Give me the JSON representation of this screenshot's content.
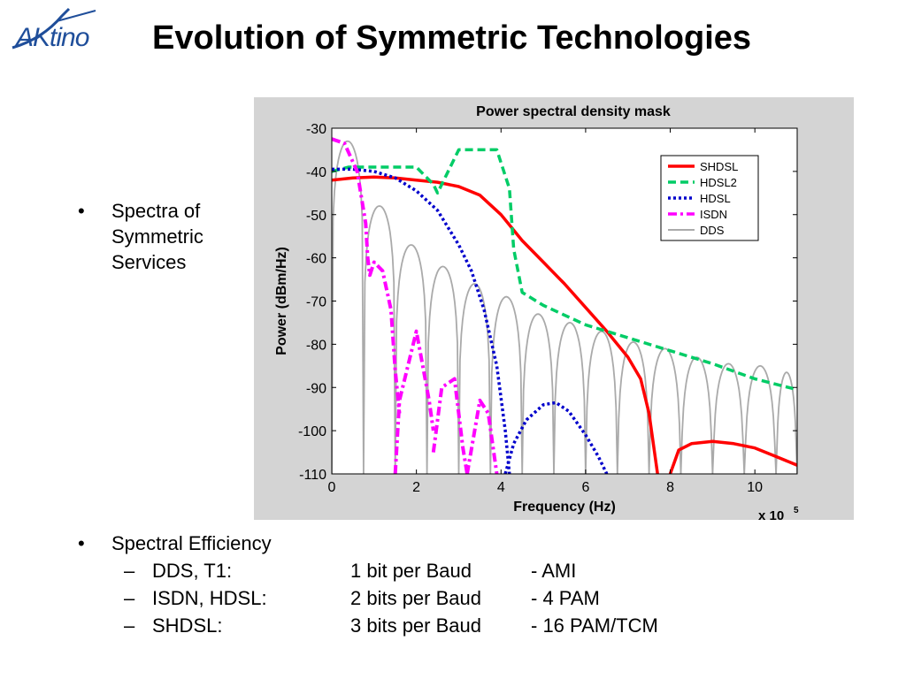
{
  "logo": {
    "text": "AKtino"
  },
  "title": "Evolution of Symmetric Technologies",
  "bullet1": {
    "marker": "•",
    "text": "Spectra of Symmetric Services"
  },
  "bullet2": {
    "marker": "•",
    "text": "Spectral Efficiency",
    "items": [
      {
        "dash": "–",
        "tech": "DDS, T1:",
        "rate": "1 bit per Baud",
        "coding": "- AMI"
      },
      {
        "dash": "–",
        "tech": "ISDN, HDSL:",
        "rate": "2 bits per Baud",
        "coding": "- 4 PAM"
      },
      {
        "dash": "–",
        "tech": "SHDSL:",
        "rate": "3 bits per Baud",
        "coding": "- 16 PAM/TCM"
      }
    ]
  },
  "colors": {
    "chart_background": "#d4d4d4",
    "shdsl": "#ff0000",
    "hdsl2": "#00cc66",
    "hdsl": "#0000cc",
    "isdn": "#ff00ff",
    "dds": "#aaaaaa",
    "logo": "#1f4e9a"
  },
  "chart_data": {
    "type": "line",
    "title": "Power spectral density mask",
    "xlabel": "Frequency (Hz)",
    "ylabel": "Power (dBm/Hz)",
    "x_multiplier_label": "x 10",
    "x_multiplier_exponent": "5",
    "xlim": [
      0,
      11
    ],
    "ylim": [
      -110,
      -30
    ],
    "xticks": [
      "0",
      "2",
      "4",
      "6",
      "8",
      "10"
    ],
    "xtick_values": [
      0,
      2,
      4,
      6,
      8,
      10
    ],
    "yticks": [
      "-30",
      "-40",
      "-50",
      "-60",
      "-70",
      "-80",
      "-90",
      "-100",
      "-110"
    ],
    "ytick_values": [
      -30,
      -40,
      -50,
      -60,
      -70,
      -80,
      -90,
      -100,
      -110
    ],
    "grid": false,
    "legend_position": "top-right",
    "series": [
      {
        "name": "SHDSL",
        "style": "solid",
        "color": "#ff0000",
        "segments": [
          [
            [
              0,
              -42
            ],
            [
              0.5,
              -41.5
            ],
            [
              1.0,
              -41.3
            ],
            [
              1.5,
              -41.5
            ],
            [
              2.0,
              -42
            ],
            [
              2.5,
              -42.5
            ],
            [
              3.0,
              -43.5
            ],
            [
              3.5,
              -45.5
            ],
            [
              4.0,
              -50
            ],
            [
              4.5,
              -56
            ],
            [
              5.0,
              -61
            ],
            [
              5.5,
              -66
            ],
            [
              6.0,
              -71.5
            ],
            [
              6.5,
              -77
            ],
            [
              7.0,
              -83
            ],
            [
              7.3,
              -88
            ],
            [
              7.5,
              -96
            ],
            [
              7.6,
              -103
            ],
            [
              7.7,
              -110
            ]
          ],
          [
            [
              8.0,
              -110
            ],
            [
              8.2,
              -104.5
            ],
            [
              8.5,
              -103
            ],
            [
              9.0,
              -102.5
            ],
            [
              9.5,
              -103
            ],
            [
              10.0,
              -104
            ],
            [
              10.5,
              -106
            ],
            [
              11.0,
              -108
            ]
          ]
        ]
      },
      {
        "name": "HDSL2",
        "style": "dashed",
        "color": "#00cc66",
        "segments": [
          [
            [
              0,
              -40
            ],
            [
              0.4,
              -39
            ],
            [
              1.0,
              -39
            ],
            [
              1.5,
              -39
            ],
            [
              2.0,
              -39
            ],
            [
              2.4,
              -43
            ],
            [
              2.5,
              -45
            ],
            [
              2.7,
              -41
            ],
            [
              3.0,
              -35
            ],
            [
              3.5,
              -35
            ],
            [
              3.9,
              -35
            ],
            [
              4.2,
              -44
            ],
            [
              4.3,
              -58
            ],
            [
              4.5,
              -68
            ],
            [
              5.0,
              -71
            ],
            [
              6.0,
              -75.5
            ],
            [
              7.0,
              -78.5
            ],
            [
              8.0,
              -81.5
            ],
            [
              9.0,
              -84.5
            ],
            [
              10.0,
              -88
            ],
            [
              11.0,
              -90.5
            ]
          ]
        ]
      },
      {
        "name": "HDSL",
        "style": "dotted",
        "color": "#0000cc",
        "segments": [
          [
            [
              0,
              -39.5
            ],
            [
              0.5,
              -39.5
            ],
            [
              1.0,
              -40
            ],
            [
              1.5,
              -41.5
            ],
            [
              2.0,
              -44.5
            ],
            [
              2.5,
              -49
            ],
            [
              3.0,
              -57
            ],
            [
              3.3,
              -63
            ],
            [
              3.6,
              -72
            ],
            [
              3.9,
              -85
            ],
            [
              4.1,
              -100
            ],
            [
              4.2,
              -110
            ]
          ],
          [
            [
              4.1,
              -110
            ],
            [
              4.3,
              -103
            ],
            [
              4.6,
              -97.5
            ],
            [
              5.0,
              -94
            ],
            [
              5.3,
              -93.5
            ],
            [
              5.6,
              -95.5
            ],
            [
              6.0,
              -101
            ],
            [
              6.3,
              -106
            ],
            [
              6.5,
              -110
            ]
          ]
        ]
      },
      {
        "name": "ISDN",
        "style": "dashdot",
        "color": "#ff00ff",
        "segments": [
          [
            [
              0.0,
              -32.5
            ],
            [
              0.3,
              -33.5
            ],
            [
              0.6,
              -40
            ],
            [
              0.8,
              -52
            ],
            [
              0.85,
              -60
            ],
            [
              0.9,
              -64
            ],
            [
              1.0,
              -61
            ],
            [
              1.2,
              -63
            ],
            [
              1.4,
              -72
            ],
            [
              1.5,
              -86
            ],
            [
              1.6,
              -96
            ]
          ],
          [
            [
              1.5,
              -110
            ],
            [
              1.6,
              -93
            ],
            [
              2.0,
              -77
            ],
            [
              2.3,
              -93
            ],
            [
              2.4,
              -100
            ]
          ],
          [
            [
              2.4,
              -105
            ],
            [
              2.6,
              -90
            ],
            [
              2.9,
              -88
            ],
            [
              3.1,
              -104
            ],
            [
              3.2,
              -110
            ]
          ],
          [
            [
              3.2,
              -110
            ],
            [
              3.5,
              -93
            ],
            [
              3.7,
              -96
            ],
            [
              3.9,
              -110
            ]
          ]
        ]
      },
      {
        "name": "DDS",
        "style": "solid",
        "color": "#aaaaaa",
        "lobe_edges": [
          0,
          0.75,
          1.5,
          2.25,
          3.0,
          3.75,
          4.5,
          5.25,
          6.0,
          6.75,
          7.5,
          8.25,
          9.0,
          9.75,
          10.5,
          11.0
        ],
        "lobe_peaks": [
          -33,
          -48,
          -57,
          -62,
          -66,
          -69,
          -73,
          -75,
          -77,
          -79.5,
          -81,
          -83,
          -84.5,
          -85,
          -86.5
        ],
        "null_floor": -110
      }
    ]
  }
}
